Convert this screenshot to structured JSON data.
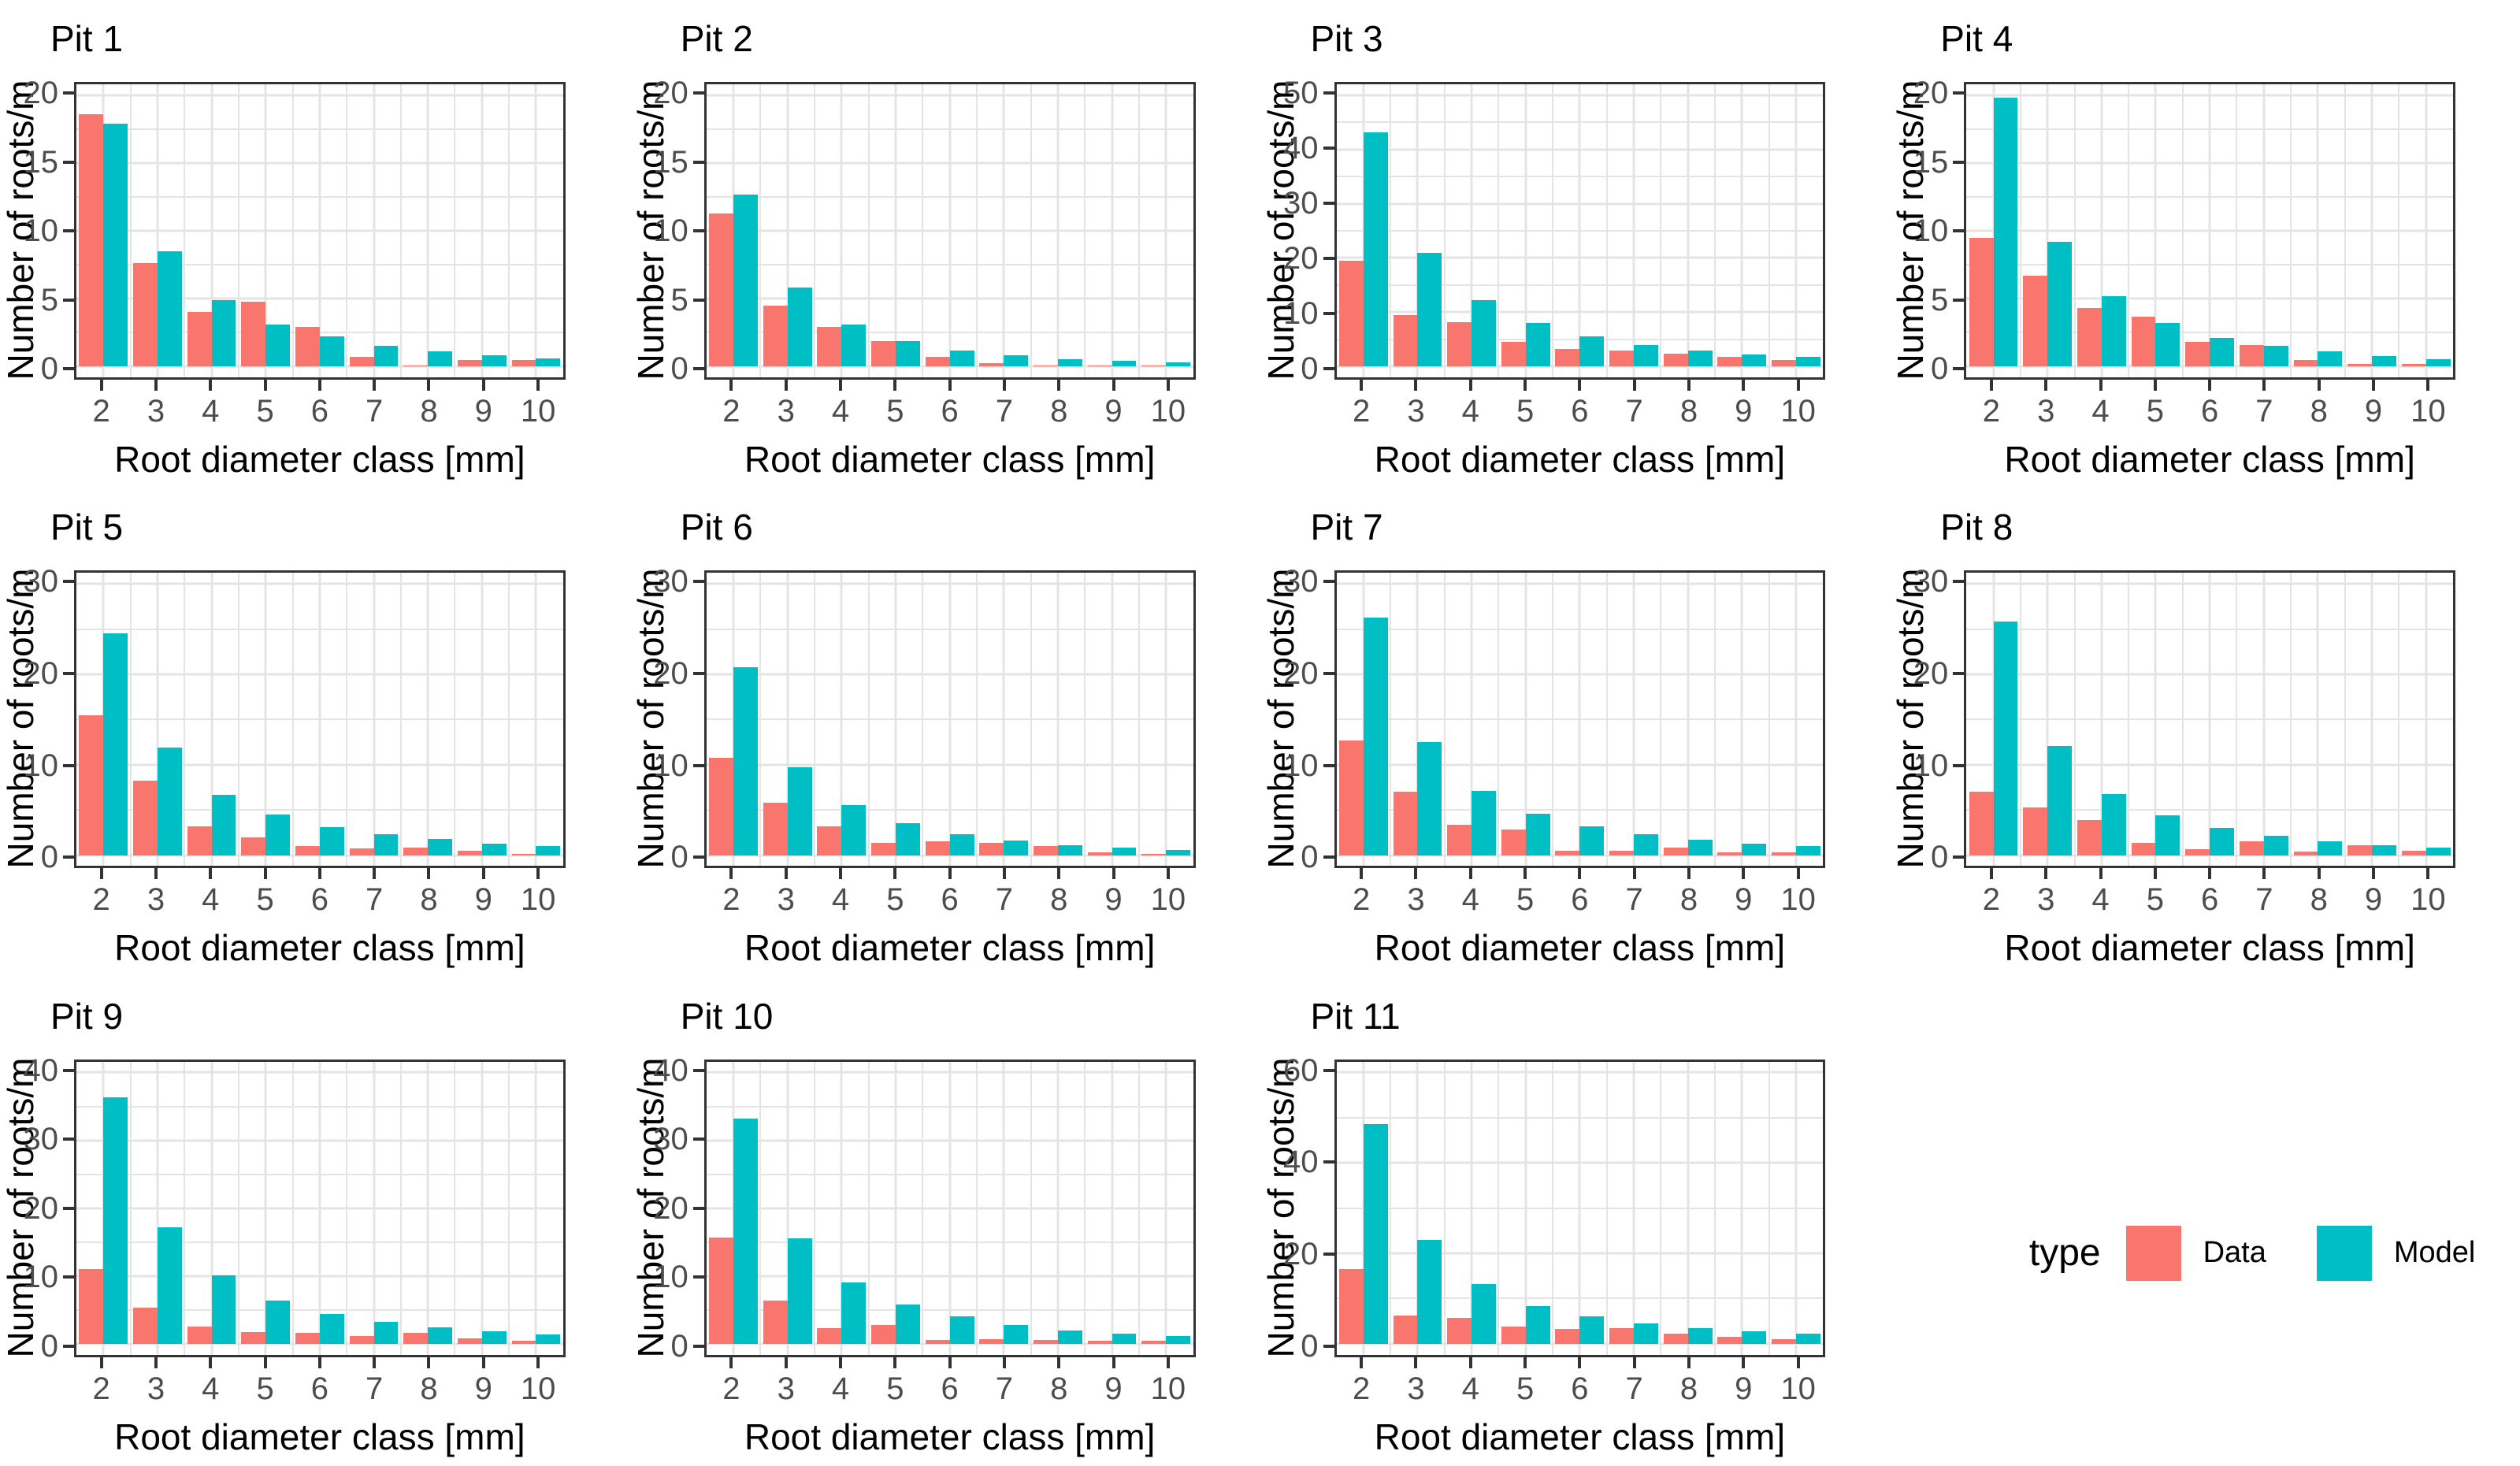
{
  "axis": {
    "ylabel": "Number of roots/m",
    "xlabel": "Root diameter class [mm]",
    "categories": [
      "2",
      "3",
      "4",
      "5",
      "6",
      "7",
      "8",
      "9",
      "10"
    ]
  },
  "legend": {
    "title": "type",
    "items": [
      {
        "label": "Data",
        "color": "#F8766D"
      },
      {
        "label": "Model",
        "color": "#00BFC4"
      }
    ],
    "position": "bottom-right-cell"
  },
  "colors": {
    "data_bar": "#F8766D",
    "model_bar": "#00BFC4",
    "gridline": "#e4e4e4",
    "panel_border": "#333333",
    "tick_text": "#4d4d4d"
  },
  "chart_data": [
    {
      "type": "bar",
      "title": "Pit 1",
      "ylim": [
        0,
        20
      ],
      "yticks": [
        0,
        5,
        10,
        15,
        20
      ],
      "grid": true,
      "series": [
        {
          "name": "Data",
          "values": [
            18.6,
            7.6,
            4.0,
            4.8,
            2.9,
            0.7,
            0.1,
            0.5,
            0.5
          ]
        },
        {
          "name": "Model",
          "values": [
            17.9,
            8.5,
            4.9,
            3.1,
            2.2,
            1.5,
            1.1,
            0.8,
            0.6
          ]
        }
      ]
    },
    {
      "type": "bar",
      "title": "Pit 2",
      "ylim": [
        0,
        20
      ],
      "yticks": [
        0,
        5,
        10,
        15,
        20
      ],
      "grid": true,
      "series": [
        {
          "name": "Data",
          "values": [
            11.3,
            4.5,
            2.9,
            1.9,
            0.7,
            0.25,
            0.1,
            0.1,
            0.1
          ]
        },
        {
          "name": "Model",
          "values": [
            12.7,
            5.8,
            3.1,
            1.9,
            1.2,
            0.85,
            0.55,
            0.4,
            0.3
          ]
        }
      ]
    },
    {
      "type": "bar",
      "title": "Pit 3",
      "ylim": [
        0,
        50
      ],
      "yticks": [
        0,
        10,
        20,
        30,
        40,
        50
      ],
      "grid": true,
      "series": [
        {
          "name": "Data",
          "values": [
            19.5,
            9.4,
            8.1,
            4.5,
            3.3,
            2.9,
            2.3,
            1.8,
            1.2
          ]
        },
        {
          "name": "Model",
          "values": [
            43.2,
            20.9,
            12.2,
            8.0,
            5.6,
            4.0,
            3.0,
            2.2,
            1.8
          ]
        }
      ]
    },
    {
      "type": "bar",
      "title": "Pit 4",
      "ylim": [
        0,
        20
      ],
      "yticks": [
        0,
        5,
        10,
        15,
        20
      ],
      "grid": true,
      "series": [
        {
          "name": "Data",
          "values": [
            9.5,
            6.7,
            4.3,
            3.7,
            1.8,
            1.6,
            0.45,
            0.2,
            0.2
          ]
        },
        {
          "name": "Model",
          "values": [
            19.8,
            9.2,
            5.2,
            3.2,
            2.1,
            1.5,
            1.1,
            0.75,
            0.55
          ]
        }
      ]
    },
    {
      "type": "bar",
      "title": "Pit 5",
      "ylim": [
        0,
        30
      ],
      "yticks": [
        0,
        10,
        20,
        30
      ],
      "grid": true,
      "series": [
        {
          "name": "Data",
          "values": [
            15.5,
            8.2,
            3.2,
            2.0,
            1.0,
            0.75,
            0.8,
            0.5,
            0.1
          ]
        },
        {
          "name": "Model",
          "values": [
            24.5,
            11.9,
            6.7,
            4.5,
            3.1,
            2.3,
            1.8,
            1.3,
            1.0
          ]
        }
      ]
    },
    {
      "type": "bar",
      "title": "Pit 6",
      "ylim": [
        0,
        30
      ],
      "yticks": [
        0,
        10,
        20,
        30
      ],
      "grid": true,
      "series": [
        {
          "name": "Data",
          "values": [
            10.8,
            5.8,
            3.2,
            1.4,
            1.5,
            1.4,
            1.0,
            0.35,
            0.1
          ]
        },
        {
          "name": "Model",
          "values": [
            20.8,
            9.7,
            5.5,
            3.5,
            2.3,
            1.6,
            1.1,
            0.8,
            0.6
          ]
        }
      ]
    },
    {
      "type": "bar",
      "title": "Pit 7",
      "ylim": [
        0,
        30
      ],
      "yticks": [
        0,
        10,
        20,
        30
      ],
      "grid": true,
      "series": [
        {
          "name": "Data",
          "values": [
            12.7,
            7.0,
            3.4,
            2.8,
            0.45,
            0.45,
            0.8,
            0.3,
            0.3
          ]
        },
        {
          "name": "Model",
          "values": [
            26.3,
            12.5,
            7.1,
            4.6,
            3.2,
            2.3,
            1.7,
            1.3,
            1.0
          ]
        }
      ]
    },
    {
      "type": "bar",
      "title": "Pit 8",
      "ylim": [
        0,
        30
      ],
      "yticks": [
        0,
        10,
        20,
        30
      ],
      "grid": true,
      "series": [
        {
          "name": "Data",
          "values": [
            7.0,
            5.3,
            3.9,
            1.4,
            0.7,
            1.5,
            0.4,
            1.1,
            0.5
          ]
        },
        {
          "name": "Model",
          "values": [
            25.8,
            12.1,
            6.8,
            4.4,
            3.0,
            2.1,
            1.5,
            1.1,
            0.8
          ]
        }
      ]
    },
    {
      "type": "bar",
      "title": "Pit 9",
      "ylim": [
        0,
        40
      ],
      "yticks": [
        0,
        10,
        20,
        30,
        40
      ],
      "grid": true,
      "series": [
        {
          "name": "Data",
          "values": [
            11.0,
            5.3,
            2.5,
            1.7,
            1.6,
            1.1,
            1.6,
            0.8,
            0.4
          ]
        },
        {
          "name": "Model",
          "values": [
            36.3,
            17.2,
            10.1,
            6.4,
            4.4,
            3.2,
            2.4,
            1.8,
            1.4
          ]
        }
      ]
    },
    {
      "type": "bar",
      "title": "Pit 10",
      "ylim": [
        0,
        40
      ],
      "yticks": [
        0,
        10,
        20,
        30,
        40
      ],
      "grid": true,
      "series": [
        {
          "name": "Data",
          "values": [
            15.7,
            6.4,
            2.3,
            2.8,
            0.6,
            0.7,
            0.6,
            0.5,
            0.4
          ]
        },
        {
          "name": "Model",
          "values": [
            33.2,
            15.6,
            9.1,
            5.8,
            4.0,
            2.8,
            2.0,
            1.5,
            1.1
          ]
        }
      ]
    },
    {
      "type": "bar",
      "title": "Pit 11",
      "ylim": [
        0,
        60
      ],
      "yticks": [
        0,
        20,
        40,
        60
      ],
      "grid": true,
      "series": [
        {
          "name": "Data",
          "values": [
            16.5,
            6.2,
            5.8,
            3.8,
            3.3,
            3.4,
            2.2,
            1.6,
            1.0
          ]
        },
        {
          "name": "Model",
          "values": [
            48.5,
            23.0,
            13.3,
            8.4,
            6.0,
            4.5,
            3.4,
            2.8,
            2.2
          ]
        }
      ]
    }
  ]
}
